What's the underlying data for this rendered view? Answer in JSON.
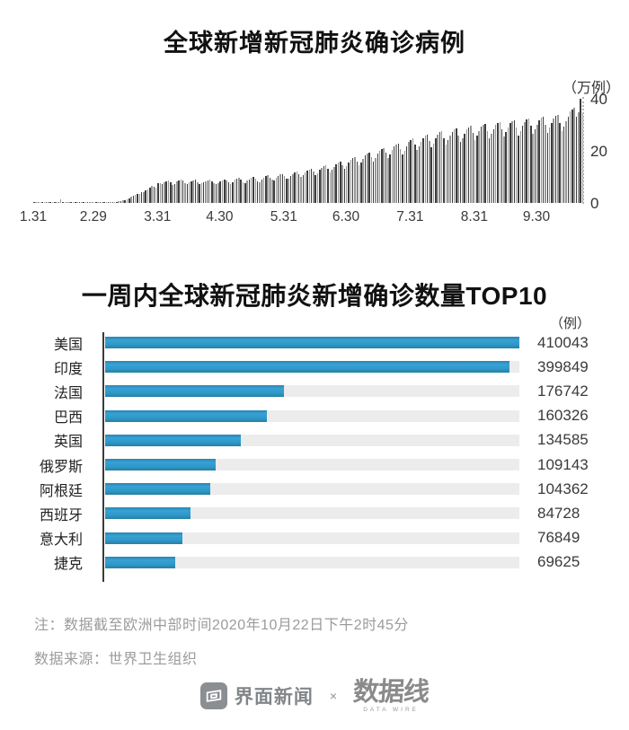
{
  "colors": {
    "bar_blue": "#2f97c9",
    "daily_bar_dark": "#3d3d3d",
    "daily_bar_light": "#979797",
    "track_gray": "#ececec",
    "note_gray": "#9b9b9b",
    "footer_gray": "#85888c"
  },
  "notes": {
    "line1": "注：数据截至欧洲中部时间2020年10月22日下午2时45分",
    "line2": "数据来源：世界卫生组织"
  },
  "footer": {
    "jiemian_label": "界面新闻",
    "separator": "×",
    "datawire_label": "数据线",
    "datawire_sub": "DATA WIRE"
  },
  "chart_data": [
    {
      "type": "bar",
      "title": "全球新增新冠肺炎确诊病例",
      "unit_label": "（万例）",
      "ylabel": "万例",
      "ylim": [
        0,
        40
      ],
      "y_ticks": [
        0,
        20,
        40
      ],
      "grid": "right dotted axis only",
      "x_tick_labels": [
        "1.31",
        "2.29",
        "3.31",
        "4.30",
        "5.31",
        "6.30",
        "7.31",
        "8.31",
        "9.30"
      ],
      "x_tick_days": [
        0,
        29,
        60,
        90,
        121,
        151,
        182,
        213,
        243
      ],
      "date_range": "2020.1.31 - 2020.10.22",
      "values": [
        0.2,
        0.26,
        0.45,
        0.3,
        0.32,
        0.37,
        0.35,
        0.33,
        0.27,
        0.3,
        0.25,
        0.2,
        0.04,
        1.5,
        0.5,
        0.24,
        0.2,
        0.19,
        0.06,
        0.05,
        0.06,
        0.09,
        0.13,
        0.07,
        0.06,
        0.09,
        0.11,
        0.14,
        0.13,
        0.18,
        0.19,
        0.17,
        0.2,
        0.22,
        0.24,
        0.28,
        0.4,
        0.38,
        0.41,
        0.45,
        0.5,
        0.6,
        0.8,
        1.0,
        1.2,
        1.5,
        1.9,
        2.3,
        2.7,
        3.2,
        3.5,
        3.3,
        4.2,
        4.3,
        4.7,
        5.2,
        6.0,
        6.4,
        6.2,
        5.8,
        7.5,
        7.7,
        7.4,
        8.0,
        8.3,
        8.5,
        7.8,
        7.0,
        7.4,
        8.3,
        8.7,
        8.9,
        8.5,
        7.6,
        7.1,
        7.8,
        8.4,
        8.7,
        8.9,
        8.1,
        7.3,
        7.5,
        7.9,
        8.3,
        8.6,
        8.8,
        8.4,
        7.6,
        7.2,
        7.7,
        8.2,
        8.7,
        9.0,
        8.6,
        7.8,
        7.4,
        8.0,
        8.9,
        9.3,
        9.5,
        8.8,
        7.9,
        7.7,
        8.5,
        9.1,
        9.6,
        9.9,
        9.2,
        8.3,
        8.1,
        9.0,
        9.8,
        10.2,
        10.6,
        9.8,
        8.8,
        8.6,
        9.5,
        10.3,
        10.9,
        11.2,
        10.3,
        9.4,
        9.2,
        10.4,
        11.2,
        11.6,
        12.0,
        11.1,
        10.0,
        10.6,
        11.7,
        12.4,
        12.8,
        13.2,
        12.0,
        10.8,
        11.5,
        12.6,
        13.5,
        14.0,
        14.4,
        13.1,
        11.8,
        12.7,
        13.9,
        15.0,
        15.6,
        16.0,
        14.5,
        13.0,
        14.2,
        15.5,
        16.6,
        17.2,
        17.6,
        16.0,
        14.4,
        15.5,
        17.0,
        18.3,
        19.0,
        19.4,
        17.7,
        15.8,
        17.2,
        18.8,
        20.0,
        20.7,
        21.1,
        19.2,
        17.3,
        18.6,
        20.3,
        21.7,
        22.5,
        22.9,
        20.8,
        18.7,
        20.1,
        21.9,
        23.4,
        24.2,
        24.8,
        22.5,
        20.2,
        21.7,
        23.5,
        25.0,
        25.8,
        26.2,
        23.8,
        21.4,
        22.9,
        24.7,
        26.3,
        27.1,
        27.5,
        25.0,
        22.5,
        24.0,
        25.8,
        27.4,
        28.2,
        28.6,
        26.0,
        23.4,
        24.9,
        26.7,
        28.3,
        29.1,
        29.5,
        26.8,
        24.1,
        25.7,
        27.5,
        29.2,
        30.0,
        30.4,
        27.6,
        24.8,
        26.4,
        28.2,
        29.9,
        30.7,
        31.1,
        28.3,
        25.4,
        27.1,
        28.9,
        30.6,
        31.4,
        31.8,
        28.9,
        26.0,
        27.7,
        29.5,
        31.2,
        32.0,
        32.4,
        29.5,
        26.5,
        28.2,
        30.0,
        31.8,
        32.6,
        33.0,
        30.0,
        27.0,
        28.8,
        30.6,
        32.4,
        33.3,
        33.7,
        30.6,
        27.5,
        29.4,
        31.3,
        33.2,
        35.1,
        36.0,
        36.4,
        33.1,
        35.0,
        40.0,
        34.4
      ]
    },
    {
      "type": "bar-horizontal",
      "title": "一周内全球新冠肺炎新增确诊数量TOP10",
      "unit_label": "（例）",
      "xlabel": "例",
      "legend": "none",
      "categories": [
        "美国",
        "印度",
        "法国",
        "巴西",
        "英国",
        "俄罗斯",
        "阿根廷",
        "西班牙",
        "意大利",
        "捷克"
      ],
      "values": [
        410043,
        399849,
        176742,
        160326,
        134585,
        109143,
        104362,
        84728,
        76849,
        69625
      ]
    }
  ]
}
